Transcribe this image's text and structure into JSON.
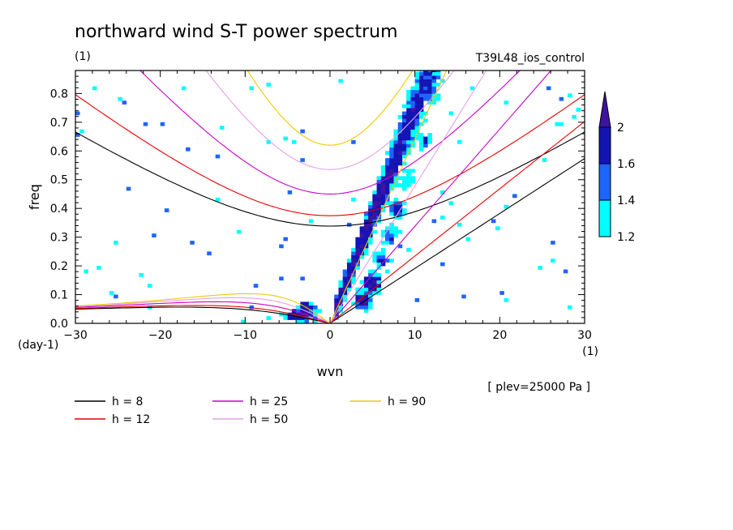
{
  "chart_data": {
    "type": "heatmap",
    "title": "northward wind S-T power spectrum",
    "subtitle_left": "(1)",
    "subtitle_right": "T39L48_ios_control",
    "xlabel": "wvn",
    "ylabel": "freq",
    "x_unit": "(1)",
    "y_unit": "(day-1)",
    "annotation": "[ plev=25000 Pa ]",
    "xlim": [
      -30,
      30
    ],
    "ylim": [
      0,
      0.88
    ],
    "x_ticks": [
      -30,
      -20,
      -10,
      0,
      10,
      20,
      30
    ],
    "y_ticks": [
      0.0,
      0.1,
      0.2,
      0.3,
      0.4,
      0.5,
      0.6,
      0.7,
      0.8
    ],
    "colorbar": {
      "levels": [
        1.2,
        1.4,
        1.6,
        2
      ],
      "colors": [
        "#00ffff",
        "#1e64ff",
        "#1414b4",
        "#3c14a0"
      ]
    },
    "dispersion_curves": [
      {
        "name": "h = 8",
        "h": 8,
        "color": "#000000"
      },
      {
        "name": "h = 12",
        "h": 12,
        "color": "#e60000"
      },
      {
        "name": "h = 25",
        "h": 25,
        "color": "#c800c8"
      },
      {
        "name": "h = 50",
        "h": 50,
        "color": "#e6a0e6"
      },
      {
        "name": "h = 90",
        "h": 90,
        "color": "#f0c800"
      }
    ],
    "spectral_peaks": [
      {
        "k": 4,
        "f": 0.08,
        "level": 2
      },
      {
        "k": 5,
        "f": 0.14,
        "level": 2
      },
      {
        "k": 6,
        "f": 0.22,
        "level": 1.6
      },
      {
        "k": 7,
        "f": 0.3,
        "level": 1.6
      },
      {
        "k": 8,
        "f": 0.4,
        "level": 1.6
      },
      {
        "k": 9,
        "f": 0.5,
        "level": 1.4
      },
      {
        "k": 11,
        "f": 0.64,
        "level": 1.4
      },
      {
        "k": 12,
        "f": 0.8,
        "level": 1.4
      },
      {
        "k": -3,
        "f": 0.04,
        "level": 2
      }
    ]
  }
}
